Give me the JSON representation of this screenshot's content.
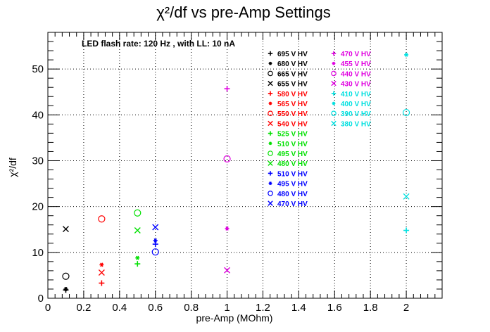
{
  "chart_data": {
    "type": "scatter",
    "title": "χ²/df vs pre-Amp Settings",
    "xlabel": "pre-Amp (MOhm)",
    "ylabel": "χ²/df",
    "xlim": [
      0,
      2.2
    ],
    "ylim": [
      0,
      58
    ],
    "x_ticks": [
      0,
      0.2,
      0.4,
      0.6,
      0.8,
      1,
      1.2,
      1.4,
      1.6,
      1.8,
      2
    ],
    "x_tick_labels": [
      "0",
      "0.2",
      "0.4",
      "0.6",
      "0.8",
      "1",
      "1.2",
      "1.4",
      "1.6",
      "1.8",
      "2"
    ],
    "y_ticks": [
      0,
      10,
      20,
      30,
      40,
      50
    ],
    "y_tick_labels": [
      "0",
      "10",
      "20",
      "30",
      "40",
      "50"
    ],
    "grid": true,
    "legend_position": "right",
    "annotation": "LED flash rate: 120 Hz , with LL: 10 nA",
    "series": [
      {
        "name": "695 V HV",
        "color": "#000000",
        "marker": "plus",
        "x": [
          0.1
        ],
        "y": [
          1.8
        ]
      },
      {
        "name": "680 V HV",
        "color": "#000000",
        "marker": "star",
        "x": [
          0.1
        ],
        "y": [
          2.0
        ]
      },
      {
        "name": "665 V HV",
        "color": "#000000",
        "marker": "circle",
        "x": [
          0.1
        ],
        "y": [
          4.8
        ]
      },
      {
        "name": "655 V HV",
        "color": "#000000",
        "marker": "x",
        "x": [
          0.1
        ],
        "y": [
          15.1
        ]
      },
      {
        "name": "580 V HV",
        "color": "#ff0000",
        "marker": "plus",
        "x": [
          0.3
        ],
        "y": [
          3.3
        ]
      },
      {
        "name": "565 V HV",
        "color": "#ff0000",
        "marker": "star",
        "x": [
          0.3
        ],
        "y": [
          7.3
        ]
      },
      {
        "name": "550 V HV",
        "color": "#ff0000",
        "marker": "circle",
        "x": [
          0.3
        ],
        "y": [
          17.3
        ]
      },
      {
        "name": "540 V HV",
        "color": "#ff0000",
        "marker": "x",
        "x": [
          0.3
        ],
        "y": [
          5.6
        ]
      },
      {
        "name": "525 V HV",
        "color": "#00e000",
        "marker": "plus",
        "x": [
          0.5
        ],
        "y": [
          7.5
        ]
      },
      {
        "name": "510 V HV",
        "color": "#00e000",
        "marker": "star",
        "x": [
          0.5
        ],
        "y": [
          8.8
        ]
      },
      {
        "name": "495 V HV",
        "color": "#00e000",
        "marker": "circle",
        "x": [
          0.5
        ],
        "y": [
          18.6
        ]
      },
      {
        "name": "480 V HV",
        "color": "#00e000",
        "marker": "x",
        "x": [
          0.5
        ],
        "y": [
          14.8
        ]
      },
      {
        "name": "510 V HV",
        "color": "#0000ff",
        "marker": "plus",
        "x": [
          0.6
        ],
        "y": [
          11.8
        ]
      },
      {
        "name": "495 V HV",
        "color": "#0000ff",
        "marker": "star",
        "x": [
          0.6
        ],
        "y": [
          12.6
        ]
      },
      {
        "name": "480 V HV",
        "color": "#0000ff",
        "marker": "circle",
        "x": [
          0.6
        ],
        "y": [
          10.1
        ]
      },
      {
        "name": "470 V HV",
        "color": "#0000ff",
        "marker": "x",
        "x": [
          0.6
        ],
        "y": [
          15.5
        ]
      },
      {
        "name": "470 V HV",
        "color": "#e000e0",
        "marker": "plus",
        "x": [
          1.0
        ],
        "y": [
          45.7
        ]
      },
      {
        "name": "455 V HV",
        "color": "#e000e0",
        "marker": "star",
        "x": [
          1.0
        ],
        "y": [
          15.2
        ]
      },
      {
        "name": "440 V HV",
        "color": "#e000e0",
        "marker": "circle",
        "x": [
          1.0
        ],
        "y": [
          30.4
        ]
      },
      {
        "name": "430 V HV",
        "color": "#e000e0",
        "marker": "x",
        "x": [
          1.0
        ],
        "y": [
          6.1
        ]
      },
      {
        "name": "410 V HV",
        "color": "#00e0e0",
        "marker": "plus",
        "x": [
          2.0
        ],
        "y": [
          14.8
        ]
      },
      {
        "name": "400 V HV",
        "color": "#00e0e0",
        "marker": "star",
        "x": [
          2.0
        ],
        "y": [
          53.1
        ]
      },
      {
        "name": "390 V HV",
        "color": "#00e0e0",
        "marker": "circle",
        "x": [
          2.0
        ],
        "y": [
          40.5
        ]
      },
      {
        "name": "380 V HV",
        "color": "#00e0e0",
        "marker": "x",
        "x": [
          2.0
        ],
        "y": [
          22.2
        ]
      }
    ]
  }
}
